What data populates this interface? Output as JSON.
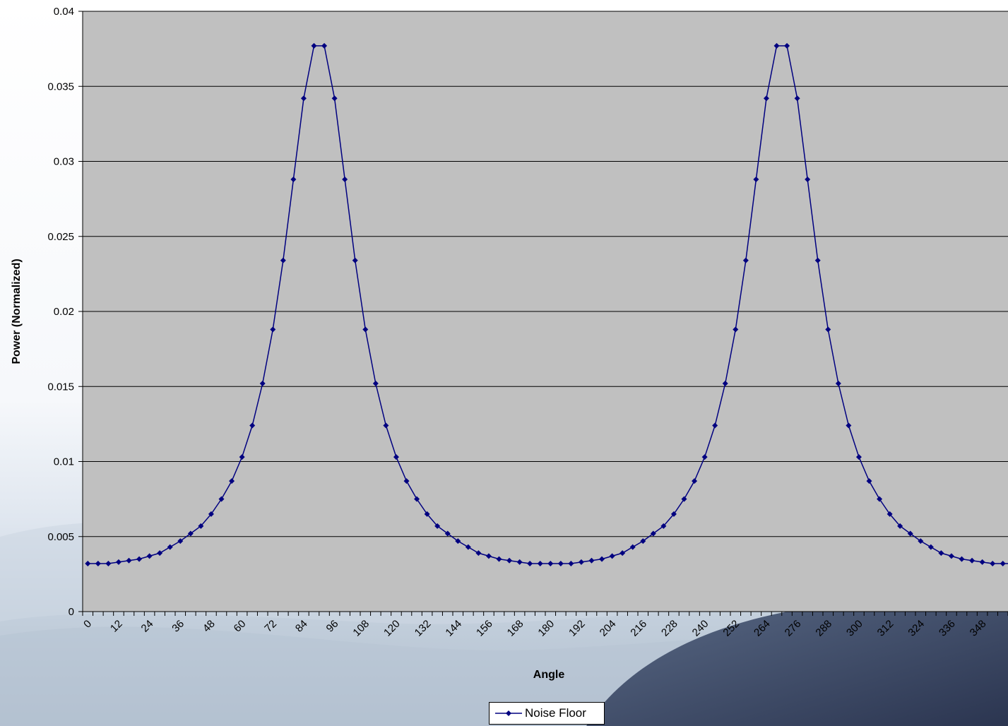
{
  "colors": {
    "series": "#000080",
    "plot_background": "#c0c0c0",
    "gridline": "#000000"
  },
  "legend": {
    "entry": "Noise Floor"
  },
  "chart_data": {
    "type": "line",
    "xlabel": "Angle",
    "ylabel": "Power (Normalized)",
    "ylim": [
      0,
      0.04
    ],
    "y_ticks": [
      "0",
      "0.005",
      "0.01",
      "0.015",
      "0.02",
      "0.025",
      "0.03",
      "0.035",
      "0.04"
    ],
    "x_tick_labels": [
      "0",
      "12",
      "24",
      "36",
      "48",
      "60",
      "72",
      "84",
      "96",
      "108",
      "120",
      "132",
      "144",
      "156",
      "168",
      "180",
      "192",
      "204",
      "216",
      "228",
      "240",
      "252",
      "264",
      "276",
      "288",
      "300",
      "312",
      "324",
      "336",
      "348"
    ],
    "grid": "horizontal",
    "legend_position": "bottom",
    "series": [
      {
        "name": "Noise Floor",
        "x": [
          0,
          4,
          8,
          12,
          16,
          20,
          24,
          28,
          32,
          36,
          40,
          44,
          48,
          52,
          56,
          60,
          64,
          68,
          72,
          76,
          80,
          84,
          88,
          92,
          96,
          100,
          104,
          108,
          112,
          116,
          120,
          124,
          128,
          132,
          136,
          140,
          144,
          148,
          152,
          156,
          160,
          164,
          168,
          172,
          176,
          180,
          184,
          188,
          192,
          196,
          200,
          204,
          208,
          212,
          216,
          220,
          224,
          228,
          232,
          236,
          240,
          244,
          248,
          252,
          256,
          260,
          264,
          268,
          272,
          276,
          280,
          284,
          288,
          292,
          296,
          300,
          304,
          308,
          312,
          316,
          320,
          324,
          328,
          332,
          336,
          340,
          344,
          348,
          352,
          356,
          360
        ],
        "values": [
          0.0032,
          0.0032,
          0.0032,
          0.0033,
          0.0034,
          0.0035,
          0.0037,
          0.0039,
          0.0043,
          0.0047,
          0.0052,
          0.0057,
          0.0065,
          0.0075,
          0.0087,
          0.0103,
          0.0124,
          0.0152,
          0.0188,
          0.0234,
          0.0288,
          0.0342,
          0.0377,
          0.0377,
          0.0342,
          0.0288,
          0.0234,
          0.0188,
          0.0152,
          0.0124,
          0.0103,
          0.0087,
          0.0075,
          0.0065,
          0.0057,
          0.0052,
          0.0047,
          0.0043,
          0.0039,
          0.0037,
          0.0035,
          0.0034,
          0.0033,
          0.0032,
          0.0032,
          0.0032,
          0.0032,
          0.0032,
          0.0033,
          0.0034,
          0.0035,
          0.0037,
          0.0039,
          0.0043,
          0.0047,
          0.0052,
          0.0057,
          0.0065,
          0.0075,
          0.0087,
          0.0103,
          0.0124,
          0.0152,
          0.0188,
          0.0234,
          0.0288,
          0.0342,
          0.0377,
          0.0377,
          0.0342,
          0.0288,
          0.0234,
          0.0188,
          0.0152,
          0.0124,
          0.0103,
          0.0087,
          0.0075,
          0.0065,
          0.0057,
          0.0052,
          0.0047,
          0.0043,
          0.0039,
          0.0037,
          0.0035,
          0.0034,
          0.0033,
          0.0032,
          0.0032,
          0.0032
        ]
      }
    ]
  }
}
